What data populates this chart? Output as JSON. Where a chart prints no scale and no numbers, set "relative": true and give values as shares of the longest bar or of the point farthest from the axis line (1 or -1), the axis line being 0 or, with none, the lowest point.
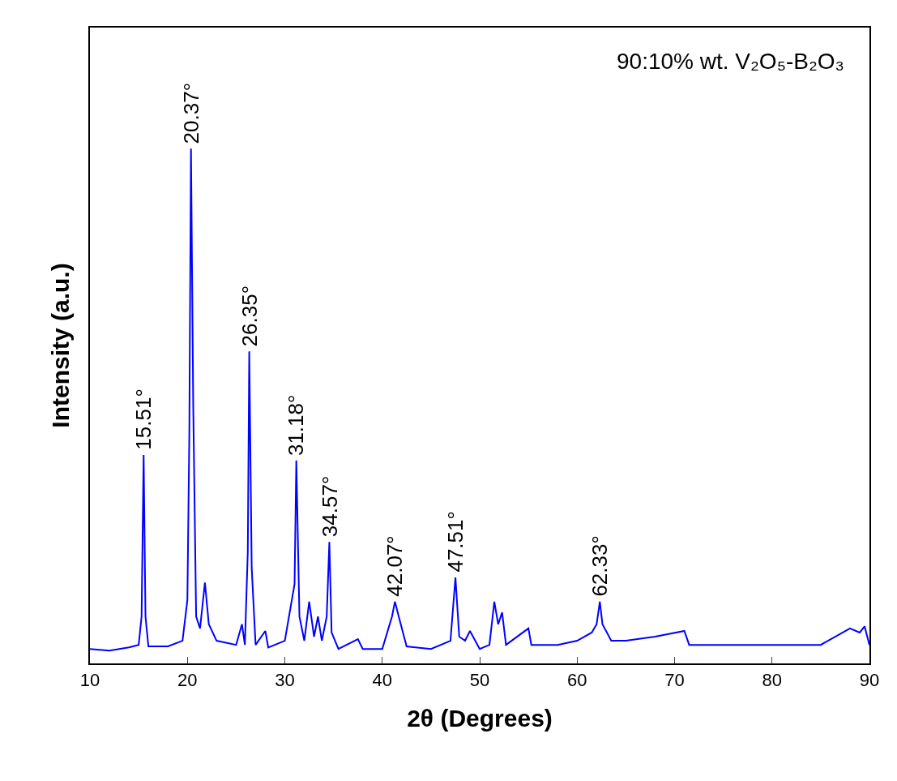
{
  "chart_data": {
    "type": "line",
    "relative": true,
    "xlabel": "2θ (Degrees)",
    "ylabel": "Intensity (a.u.)",
    "xlim": [
      10,
      90
    ],
    "xticks": [
      10,
      20,
      30,
      40,
      50,
      60,
      70,
      80,
      90
    ],
    "marker": "none",
    "line_style": "solid",
    "series": [
      {
        "color": "#0000ff",
        "x": [
          10,
          12,
          14,
          15.0,
          15.3,
          15.51,
          15.7,
          16,
          18,
          19.5,
          20.0,
          20.2,
          20.37,
          20.6,
          20.9,
          21.3,
          21.8,
          22.2,
          23,
          25,
          25.6,
          25.9,
          26.2,
          26.35,
          26.6,
          27,
          28,
          28.3,
          30,
          31.0,
          31.18,
          31.5,
          32,
          32.5,
          33,
          33.4,
          33.8,
          34.3,
          34.57,
          34.8,
          35.5,
          37.5,
          38,
          40,
          41,
          41.3,
          41.8,
          42.5,
          45,
          47,
          47.51,
          47.9,
          48.5,
          49,
          50,
          51,
          51.5,
          51.9,
          52.3,
          52.7,
          55,
          55.3,
          58,
          60,
          61.5,
          62.0,
          62.33,
          62.6,
          63.5,
          65,
          68,
          71,
          71.5,
          75,
          80,
          85,
          88,
          89,
          89.5,
          90
        ],
        "values": [
          0.028,
          0.025,
          0.031,
          0.036,
          0.091,
          0.405,
          0.091,
          0.033,
          0.033,
          0.044,
          0.123,
          0.446,
          1.0,
          0.501,
          0.091,
          0.068,
          0.157,
          0.076,
          0.044,
          0.036,
          0.076,
          0.036,
          0.217,
          0.606,
          0.186,
          0.036,
          0.063,
          0.031,
          0.044,
          0.154,
          0.394,
          0.091,
          0.044,
          0.12,
          0.052,
          0.091,
          0.044,
          0.091,
          0.236,
          0.06,
          0.028,
          0.047,
          0.028,
          0.028,
          0.091,
          0.12,
          0.083,
          0.033,
          0.028,
          0.044,
          0.167,
          0.052,
          0.044,
          0.063,
          0.028,
          0.036,
          0.12,
          0.076,
          0.099,
          0.036,
          0.068,
          0.036,
          0.036,
          0.044,
          0.06,
          0.076,
          0.12,
          0.076,
          0.044,
          0.044,
          0.052,
          0.063,
          0.036,
          0.036,
          0.036,
          0.036,
          0.068,
          0.06,
          0.072,
          0.036
        ]
      }
    ],
    "annotations": [
      "90:10% wt. V₂O₅-B₂O₃",
      {
        "text": "15.51°",
        "x": 15.51,
        "y": 0.405
      },
      {
        "text": "20.37°",
        "x": 20.37,
        "y": 1.0
      },
      {
        "text": "26.35°",
        "x": 26.35,
        "y": 0.606
      },
      {
        "text": "31.18°",
        "x": 31.18,
        "y": 0.394
      },
      {
        "text": "34.57°",
        "x": 34.57,
        "y": 0.236
      },
      {
        "text": "42.07°",
        "x": 41.3,
        "y": 0.12
      },
      {
        "text": "47.51°",
        "x": 47.51,
        "y": 0.167
      },
      {
        "text": "62.33°",
        "x": 62.33,
        "y": 0.12
      }
    ]
  }
}
